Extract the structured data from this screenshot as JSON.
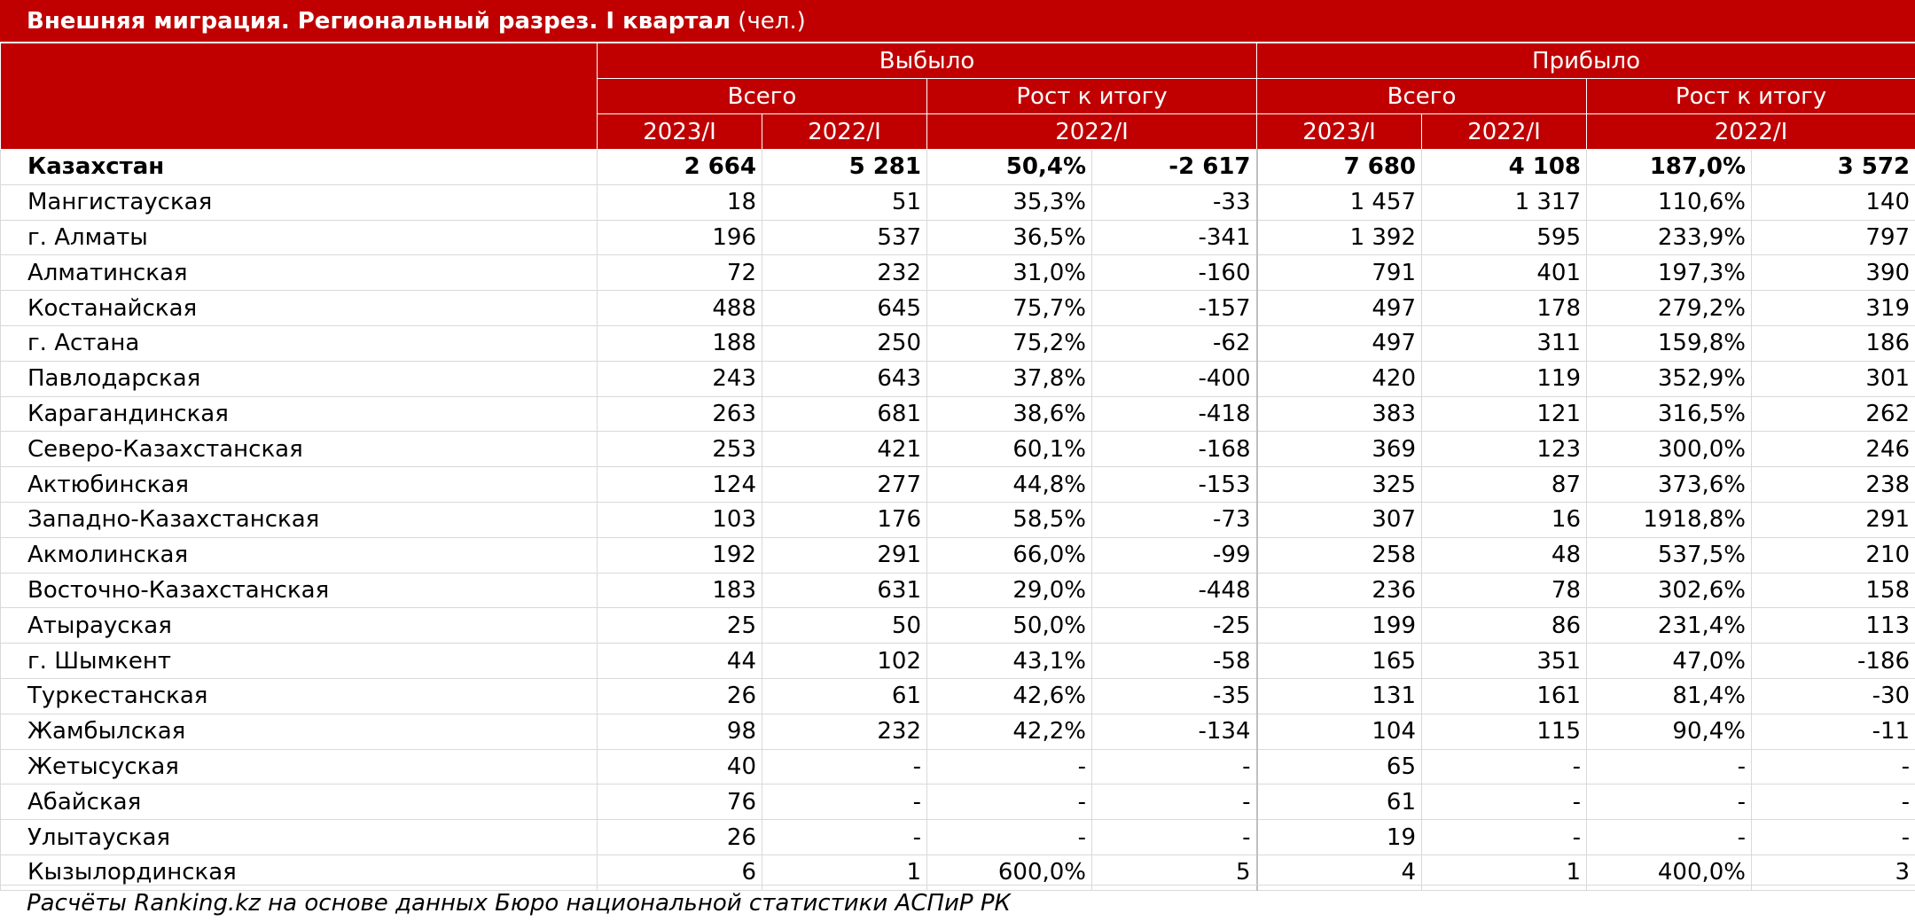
{
  "title": {
    "bold": "Внешняя миграция. Региональный разрез. I квартал",
    "rest": " (чел.)"
  },
  "header": {
    "group_out": "Выбыло",
    "group_in": "Прибыло",
    "total_label": "Всего",
    "growth_label": "Рост к итогу",
    "period_2023": "2023/I",
    "period_2022": "2022/I"
  },
  "rows": [
    {
      "region": "Казахстан",
      "out_2023": "2 664",
      "out_2022": "5 281",
      "out_pct": "50,4%",
      "out_diff": "-2 617",
      "in_2023": "7 680",
      "in_2022": "4 108",
      "in_pct": "187,0%",
      "in_diff": "3 572"
    },
    {
      "region": "Мангистауская",
      "out_2023": "18",
      "out_2022": "51",
      "out_pct": "35,3%",
      "out_diff": "-33",
      "in_2023": "1 457",
      "in_2022": "1 317",
      "in_pct": "110,6%",
      "in_diff": "140"
    },
    {
      "region": "г. Алматы",
      "out_2023": "196",
      "out_2022": "537",
      "out_pct": "36,5%",
      "out_diff": "-341",
      "in_2023": "1 392",
      "in_2022": "595",
      "in_pct": "233,9%",
      "in_diff": "797"
    },
    {
      "region": "Алматинская",
      "out_2023": "72",
      "out_2022": "232",
      "out_pct": "31,0%",
      "out_diff": "-160",
      "in_2023": "791",
      "in_2022": "401",
      "in_pct": "197,3%",
      "in_diff": "390"
    },
    {
      "region": "Костанайская",
      "out_2023": "488",
      "out_2022": "645",
      "out_pct": "75,7%",
      "out_diff": "-157",
      "in_2023": "497",
      "in_2022": "178",
      "in_pct": "279,2%",
      "in_diff": "319"
    },
    {
      "region": "г. Астана",
      "out_2023": "188",
      "out_2022": "250",
      "out_pct": "75,2%",
      "out_diff": "-62",
      "in_2023": "497",
      "in_2022": "311",
      "in_pct": "159,8%",
      "in_diff": "186"
    },
    {
      "region": "Павлодарская",
      "out_2023": "243",
      "out_2022": "643",
      "out_pct": "37,8%",
      "out_diff": "-400",
      "in_2023": "420",
      "in_2022": "119",
      "in_pct": "352,9%",
      "in_diff": "301"
    },
    {
      "region": "Карагандинская",
      "out_2023": "263",
      "out_2022": "681",
      "out_pct": "38,6%",
      "out_diff": "-418",
      "in_2023": "383",
      "in_2022": "121",
      "in_pct": "316,5%",
      "in_diff": "262"
    },
    {
      "region": "Северо-Казахстанская",
      "out_2023": "253",
      "out_2022": "421",
      "out_pct": "60,1%",
      "out_diff": "-168",
      "in_2023": "369",
      "in_2022": "123",
      "in_pct": "300,0%",
      "in_diff": "246"
    },
    {
      "region": "Актюбинская",
      "out_2023": "124",
      "out_2022": "277",
      "out_pct": "44,8%",
      "out_diff": "-153",
      "in_2023": "325",
      "in_2022": "87",
      "in_pct": "373,6%",
      "in_diff": "238"
    },
    {
      "region": "Западно-Казахстанская",
      "out_2023": "103",
      "out_2022": "176",
      "out_pct": "58,5%",
      "out_diff": "-73",
      "in_2023": "307",
      "in_2022": "16",
      "in_pct": "1918,8%",
      "in_diff": "291"
    },
    {
      "region": "Акмолинская",
      "out_2023": "192",
      "out_2022": "291",
      "out_pct": "66,0%",
      "out_diff": "-99",
      "in_2023": "258",
      "in_2022": "48",
      "in_pct": "537,5%",
      "in_diff": "210"
    },
    {
      "region": "Восточно-Казахстанская",
      "out_2023": "183",
      "out_2022": "631",
      "out_pct": "29,0%",
      "out_diff": "-448",
      "in_2023": "236",
      "in_2022": "78",
      "in_pct": "302,6%",
      "in_diff": "158"
    },
    {
      "region": "Атырауская",
      "out_2023": "25",
      "out_2022": "50",
      "out_pct": "50,0%",
      "out_diff": "-25",
      "in_2023": "199",
      "in_2022": "86",
      "in_pct": "231,4%",
      "in_diff": "113"
    },
    {
      "region": "г. Шымкент",
      "out_2023": "44",
      "out_2022": "102",
      "out_pct": "43,1%",
      "out_diff": "-58",
      "in_2023": "165",
      "in_2022": "351",
      "in_pct": "47,0%",
      "in_diff": "-186"
    },
    {
      "region": "Туркестанская",
      "out_2023": "26",
      "out_2022": "61",
      "out_pct": "42,6%",
      "out_diff": "-35",
      "in_2023": "131",
      "in_2022": "161",
      "in_pct": "81,4%",
      "in_diff": "-30"
    },
    {
      "region": "Жамбылская",
      "out_2023": "98",
      "out_2022": "232",
      "out_pct": "42,2%",
      "out_diff": "-134",
      "in_2023": "104",
      "in_2022": "115",
      "in_pct": "90,4%",
      "in_diff": "-11"
    },
    {
      "region": "Жетысуская",
      "out_2023": "40",
      "out_2022": "-",
      "out_pct": "-",
      "out_diff": "-",
      "in_2023": "65",
      "in_2022": "-",
      "in_pct": "-",
      "in_diff": "-"
    },
    {
      "region": "Абайская",
      "out_2023": "76",
      "out_2022": "-",
      "out_pct": "-",
      "out_diff": "-",
      "in_2023": "61",
      "in_2022": "-",
      "in_pct": "-",
      "in_diff": "-"
    },
    {
      "region": "Улытауская",
      "out_2023": "26",
      "out_2022": "-",
      "out_pct": "-",
      "out_diff": "-",
      "in_2023": "19",
      "in_2022": "-",
      "in_pct": "-",
      "in_diff": "-"
    },
    {
      "region": "Кызылординская",
      "out_2023": "6",
      "out_2022": "1",
      "out_pct": "600,0%",
      "out_diff": "5",
      "in_2023": "4",
      "in_2022": "1",
      "in_pct": "400,0%",
      "in_diff": "3"
    }
  ],
  "footnote": "Расчёты Ranking.kz на основе данных Бюро национальной статистики АСПиР РК",
  "colors": {
    "header_bg": "#c00000",
    "header_text": "#ffffff",
    "grid": "#d9d9d9"
  }
}
